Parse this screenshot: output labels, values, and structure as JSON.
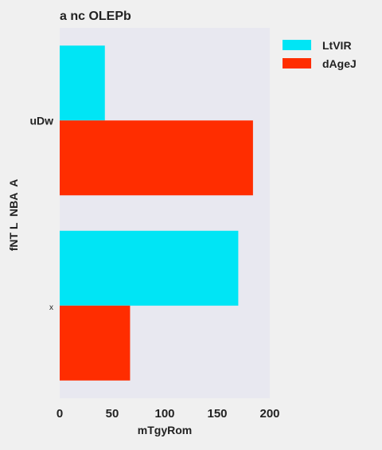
{
  "chart_data": {
    "type": "bar",
    "orientation": "horizontal",
    "title": "a nc OLEPb",
    "xlabel": "mTgyRom",
    "ylabel": "fNT L  NBA  A",
    "categories": [
      "uDw",
      "x"
    ],
    "series": [
      {
        "name": "LtVIR",
        "values": [
          43,
          170
        ]
      },
      {
        "name": "dAgeJ",
        "values": [
          184,
          67
        ]
      }
    ],
    "xlim": [
      0,
      200
    ],
    "xticks": [
      0,
      50,
      100,
      150,
      200
    ],
    "grid": false,
    "legend": "top-right",
    "colors": {
      "LtVIR": "#00e5f5",
      "dAgeJ": "#ff2d00",
      "plot_bg": "#e8e8f0",
      "page_bg": "#f0f0f0"
    }
  }
}
